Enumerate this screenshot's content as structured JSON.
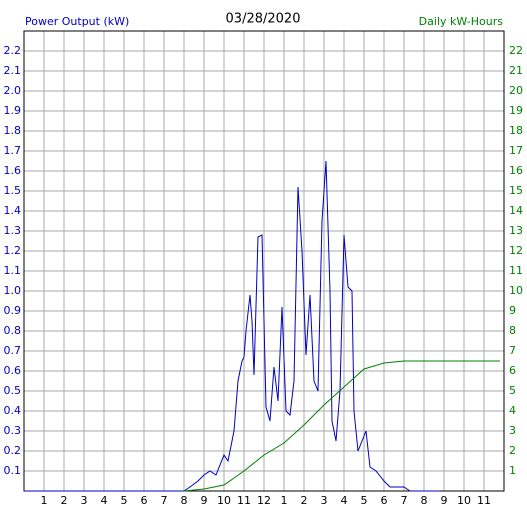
{
  "chart_data": {
    "type": "line",
    "title": "03/28/2020",
    "y_label": "Power Output (kW)",
    "y2_label": "Daily kW-Hours",
    "xlim": [
      0,
      24
    ],
    "xticks": [
      1,
      2,
      3,
      4,
      5,
      6,
      7,
      8,
      9,
      10,
      11,
      12,
      {
        "value": 13,
        "label": "1"
      },
      {
        "value": 14,
        "label": "2"
      },
      {
        "value": 15,
        "label": "3"
      },
      {
        "value": 16,
        "label": "4"
      },
      {
        "value": 17,
        "label": "5"
      },
      {
        "value": 18,
        "label": "6"
      },
      {
        "value": 19,
        "label": "7"
      },
      {
        "value": 20,
        "label": "8"
      },
      {
        "value": 21,
        "label": "9"
      },
      {
        "value": 22,
        "label": "10"
      },
      {
        "value": 23,
        "label": "11"
      }
    ],
    "ylim": [
      0,
      2.3
    ],
    "yticks": [
      0.1,
      0.2,
      0.3,
      0.4,
      0.5,
      0.6,
      0.7,
      0.8,
      0.9,
      {
        "value": 1,
        "label": "1.0"
      },
      1.1,
      1.2,
      1.3,
      1.4,
      1.5,
      1.6,
      1.7,
      1.8,
      1.9,
      {
        "value": 2,
        "label": "2.0"
      },
      2.1,
      2.2
    ],
    "y2lim": [
      0,
      23
    ],
    "y2ticks": [
      1,
      2,
      3,
      4,
      5,
      6,
      7,
      8,
      9,
      10,
      11,
      12,
      13,
      14,
      15,
      16,
      17,
      18,
      19,
      20,
      21,
      22
    ],
    "grid": true,
    "series": [
      {
        "name": "Power Output (kW)",
        "color": "#0000c0",
        "x": [
          0,
          8,
          8.3,
          8.7,
          9,
          9.3,
          9.6,
          10,
          10.2,
          10.5,
          10.7,
          10.9,
          11,
          11.1,
          11.3,
          11.4,
          11.5,
          11.7,
          11.9,
          12.1,
          12.3,
          12.5,
          12.7,
          12.9,
          13.1,
          13.3,
          13.5,
          13.7,
          13.9,
          14.1,
          14.3,
          14.5,
          14.7,
          14.9,
          15.1,
          15.3,
          15.4,
          15.6,
          15.8,
          16,
          16.2,
          16.4,
          16.5,
          16.7,
          16.9,
          17.1,
          17.3,
          17.6,
          18,
          18.3,
          19,
          19.3,
          20.8
        ],
        "values": [
          0,
          0,
          0.02,
          0.05,
          0.08,
          0.1,
          0.08,
          0.18,
          0.15,
          0.3,
          0.55,
          0.65,
          0.67,
          0.8,
          0.98,
          0.85,
          0.58,
          1.27,
          1.28,
          0.42,
          0.35,
          0.62,
          0.45,
          0.92,
          0.4,
          0.38,
          0.55,
          1.52,
          1.2,
          0.68,
          0.98,
          0.55,
          0.5,
          1.35,
          1.65,
          1,
          0.35,
          0.25,
          0.5,
          1.28,
          1.02,
          1,
          0.4,
          0.2,
          0.25,
          0.3,
          0.12,
          0.1,
          0.05,
          0.02,
          0.02,
          0,
          0
        ]
      },
      {
        "name": "Daily kW-Hours",
        "color": "#008000",
        "axis": "y2",
        "x": [
          8,
          9,
          10,
          11,
          12,
          13,
          14,
          15,
          16,
          17,
          18,
          19,
          20,
          23.8
        ],
        "values": [
          0,
          0.1,
          0.3,
          1,
          1.8,
          2.4,
          3.3,
          4.3,
          5.2,
          6.1,
          6.4,
          6.5,
          6.5,
          6.5
        ]
      }
    ]
  }
}
